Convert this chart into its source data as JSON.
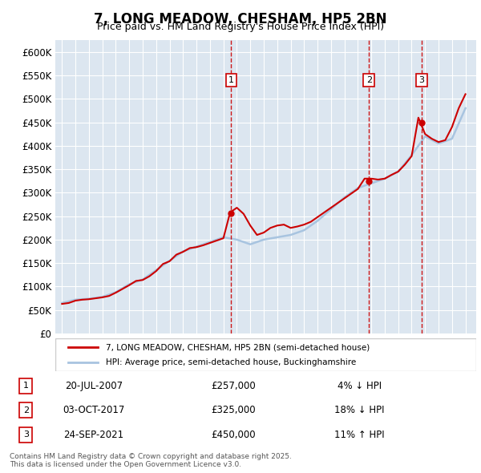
{
  "title": "7, LONG MEADOW, CHESHAM, HP5 2BN",
  "subtitle": "Price paid vs. HM Land Registry's House Price Index (HPI)",
  "ylabel": "",
  "ylim": [
    0,
    625000
  ],
  "yticks": [
    0,
    50000,
    100000,
    150000,
    200000,
    250000,
    300000,
    350000,
    400000,
    450000,
    500000,
    550000,
    600000
  ],
  "ytick_labels": [
    "£0",
    "£50K",
    "£100K",
    "£150K",
    "£200K",
    "£250K",
    "£300K",
    "£350K",
    "£400K",
    "£450K",
    "£500K",
    "£550K",
    "£600K"
  ],
  "background_color": "#dce6f0",
  "plot_bg_color": "#dce6f0",
  "sale_color": "#cc0000",
  "hpi_color": "#a8c4e0",
  "sale_label": "7, LONG MEADOW, CHESHAM, HP5 2BN (semi-detached house)",
  "hpi_label": "HPI: Average price, semi-detached house, Buckinghamshire",
  "sale_dates": [
    "2007-07-20",
    "2017-10-03",
    "2021-09-24"
  ],
  "sale_prices": [
    257000,
    325000,
    450000
  ],
  "sale_labels": [
    "1",
    "2",
    "3"
  ],
  "sale_info": [
    {
      "label": "1",
      "date": "20-JUL-2007",
      "price": "£257,000",
      "hpi_diff": "4% ↓ HPI"
    },
    {
      "label": "2",
      "date": "03-OCT-2017",
      "price": "£325,000",
      "hpi_diff": "18% ↓ HPI"
    },
    {
      "label": "3",
      "date": "24-SEP-2021",
      "price": "£450,000",
      "hpi_diff": "11% ↑ HPI"
    }
  ],
  "footer": "Contains HM Land Registry data © Crown copyright and database right 2025.\nThis data is licensed under the Open Government Licence v3.0.",
  "hpi_years": [
    1995,
    1996,
    1997,
    1998,
    1999,
    2000,
    2001,
    2002,
    2003,
    2004,
    2005,
    2006,
    2007,
    2008,
    2009,
    2010,
    2011,
    2012,
    2013,
    2014,
    2015,
    2016,
    2017,
    2018,
    2019,
    2020,
    2021,
    2022,
    2023,
    2024,
    2025
  ],
  "hpi_values": [
    65000,
    72000,
    74000,
    78000,
    88000,
    105000,
    115000,
    135000,
    155000,
    175000,
    185000,
    195000,
    205000,
    200000,
    190000,
    200000,
    205000,
    210000,
    220000,
    240000,
    265000,
    290000,
    310000,
    320000,
    330000,
    345000,
    380000,
    420000,
    405000,
    415000,
    480000
  ],
  "prop_years": [
    1995.0,
    1995.5,
    1996.0,
    1996.5,
    1997.0,
    1997.5,
    1998.0,
    1998.5,
    1999.0,
    1999.5,
    2000.0,
    2000.5,
    2001.0,
    2001.5,
    2002.0,
    2002.5,
    2003.0,
    2003.5,
    2004.0,
    2004.5,
    2005.0,
    2005.5,
    2006.0,
    2006.5,
    2007.0,
    2007.5,
    2008.0,
    2008.5,
    2009.0,
    2009.5,
    2010.0,
    2010.5,
    2011.0,
    2011.5,
    2012.0,
    2012.5,
    2013.0,
    2013.5,
    2014.0,
    2014.5,
    2015.0,
    2015.5,
    2016.0,
    2016.5,
    2017.0,
    2017.5,
    2018.0,
    2018.5,
    2019.0,
    2019.5,
    2020.0,
    2020.5,
    2021.0,
    2021.5,
    2022.0,
    2022.5,
    2023.0,
    2023.5,
    2024.0,
    2024.5,
    2025.0
  ],
  "prop_values": [
    63000,
    65000,
    70000,
    72000,
    73000,
    75000,
    77000,
    80000,
    87000,
    95000,
    103000,
    112000,
    114000,
    122000,
    133000,
    148000,
    154000,
    168000,
    174000,
    182000,
    184000,
    188000,
    193000,
    198000,
    203000,
    258000,
    268000,
    255000,
    230000,
    210000,
    215000,
    225000,
    230000,
    232000,
    225000,
    228000,
    232000,
    238000,
    248000,
    258000,
    268000,
    278000,
    288000,
    298000,
    308000,
    330000,
    330000,
    328000,
    330000,
    338000,
    345000,
    360000,
    378000,
    460000,
    425000,
    415000,
    408000,
    412000,
    440000,
    480000,
    510000
  ]
}
